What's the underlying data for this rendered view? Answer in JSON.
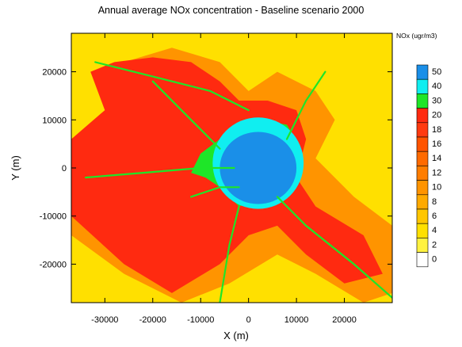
{
  "chart_data": {
    "type": "heatmap",
    "title": "Annual average NOx concentration - Baseline scenario 2000",
    "xlabel": "X (m)",
    "ylabel": "Y (m)",
    "xlim": [
      -37000,
      30000
    ],
    "ylim": [
      -28000,
      28000
    ],
    "x_ticks": [
      -30000,
      -20000,
      -10000,
      0,
      10000,
      20000
    ],
    "y_ticks": [
      20000,
      10000,
      0,
      -10000,
      -20000
    ],
    "x_tick_labels": [
      "-30000",
      "-20000",
      "-10000",
      "0",
      "10000",
      "20000"
    ],
    "y_tick_labels": [
      "20000",
      "10000",
      "0",
      "-10000",
      "-20000"
    ],
    "grid": false,
    "colorbar": {
      "title": "NOx (ugr/m3)",
      "levels": [
        0,
        2,
        4,
        6,
        8,
        10,
        12,
        14,
        16,
        18,
        20,
        30,
        40,
        50
      ],
      "labels": [
        "0",
        "2",
        "4",
        "6",
        "8",
        "10",
        "12",
        "14",
        "16",
        "18",
        "20",
        "30",
        "40",
        "50"
      ],
      "colors": [
        "#ffffff",
        "#fff240",
        "#ffe000",
        "#ffc600",
        "#ffaa00",
        "#ff9400",
        "#ff7d00",
        "#ff6a00",
        "#ff5400",
        "#ff3a10",
        "#ff2a10",
        "#1ee628",
        "#10eef0",
        "#1a8fe8"
      ]
    },
    "field": {
      "background_value": 5,
      "urban_core": {
        "center": [
          2000,
          0
        ],
        "value": 50
      },
      "urban_ring": {
        "center": [
          2000,
          1000
        ],
        "value": 40
      },
      "suburban_zone": {
        "value": 20
      },
      "inner_suburban_zone": {
        "value": 30
      },
      "moderate_zone": {
        "value": 10
      }
    }
  }
}
